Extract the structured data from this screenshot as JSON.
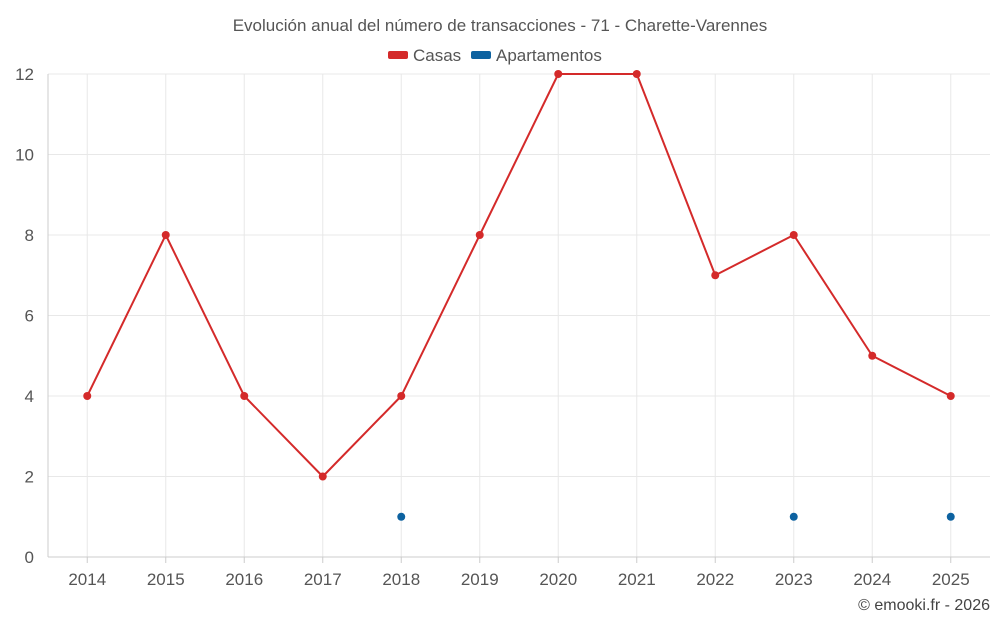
{
  "chart_data": {
    "type": "line",
    "title": "Evolución anual del número de transacciones - 71 - Charette-Varennes",
    "categories": [
      "2014",
      "2015",
      "2016",
      "2017",
      "2018",
      "2019",
      "2020",
      "2021",
      "2022",
      "2023",
      "2024",
      "2025"
    ],
    "series": [
      {
        "name": "Casas",
        "color": "#d42a2a",
        "values": [
          4,
          8,
          4,
          2,
          4,
          8,
          12,
          12,
          7,
          8,
          5,
          4
        ]
      },
      {
        "name": "Apartamentos",
        "color": "#0d62a0",
        "values": [
          null,
          null,
          null,
          null,
          1,
          null,
          null,
          null,
          null,
          1,
          null,
          1
        ]
      }
    ],
    "ylim": [
      0,
      12
    ],
    "yticks": [
      "0",
      "2",
      "4",
      "6",
      "8",
      "10",
      "12"
    ],
    "xlabel": "",
    "ylabel": "",
    "grid": true,
    "legend_position": "top-center"
  },
  "credit": "© emooki.fr - 2026"
}
